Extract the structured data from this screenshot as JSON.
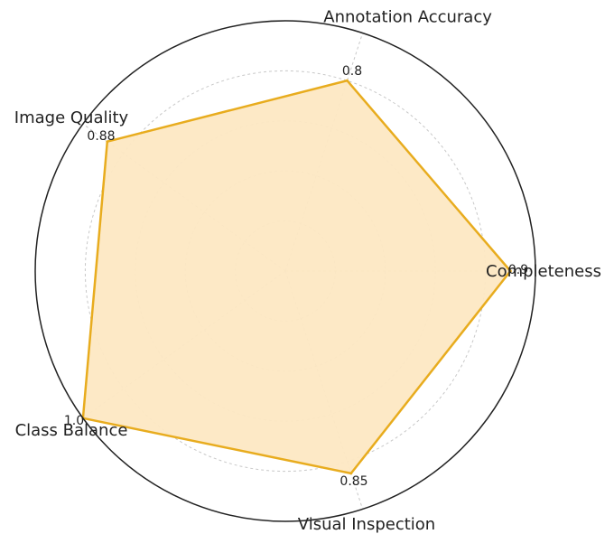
{
  "chart_data": {
    "type": "radar",
    "title": "",
    "categories": [
      "Completeness",
      "Annotation Accuracy",
      "Image Quality",
      "Class Balance",
      "Visual Inspection"
    ],
    "values": [
      0.9,
      0.8,
      0.88,
      1.0,
      0.85
    ],
    "value_labels": [
      "0.9",
      "0.8",
      "0.88",
      "1.0",
      "0.85"
    ],
    "rlim": [
      0,
      1.0
    ],
    "gridlines": [
      0.2,
      0.4,
      0.6,
      0.8,
      1.0
    ],
    "grid": true,
    "legend": "none"
  },
  "colors": {
    "line": "#e8ac1e",
    "fill": "#fde8c3",
    "grid": "#c8c8c8",
    "frame": "#222222"
  }
}
